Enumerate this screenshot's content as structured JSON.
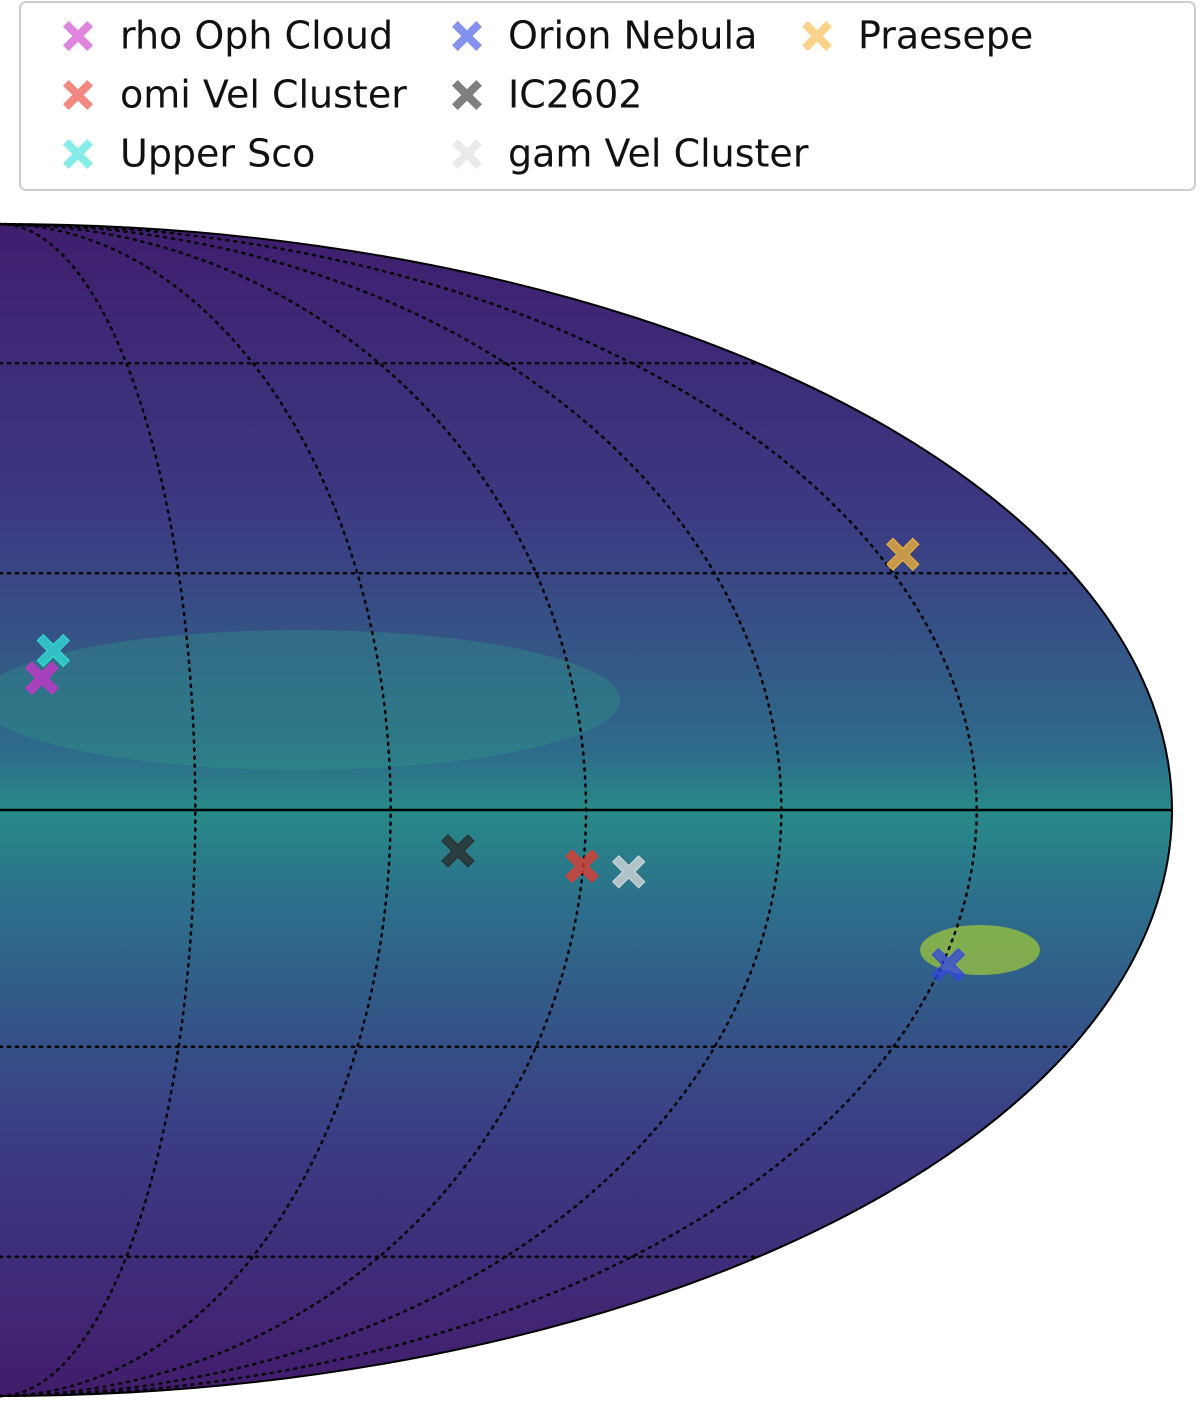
{
  "chart_data": {
    "type": "scatter",
    "projection": "mollweide",
    "xlim": [
      360,
      180
    ],
    "ylim": [
      -90,
      90
    ],
    "xticks": [
      330,
      300,
      270,
      240,
      210
    ],
    "yticks": [
      -60,
      -30,
      0,
      30,
      60
    ],
    "grid": true,
    "series": [
      {
        "name": "rho Oph Cloud",
        "color": "#cc33cc",
        "x": [
          353.4
        ],
        "values": [
          16.5
        ]
      },
      {
        "name": "omi Vel Cluster",
        "color": "#e83a2e",
        "x": [
          270.2
        ],
        "values": [
          -7.0
        ]
      },
      {
        "name": "Upper Sco",
        "color": "#33e0d8",
        "x": [
          351.5
        ],
        "values": [
          20.0
        ]
      },
      {
        "name": "Orion Nebula",
        "color": "#3347e0",
        "x": [
          209.0
        ],
        "values": [
          -19.4
        ]
      },
      {
        "name": "IC2602",
        "color": "#2a2a2a",
        "x": [
          289.5
        ],
        "values": [
          -5.1
        ]
      },
      {
        "name": "gam Vel Cluster",
        "color": "#dcdcdc",
        "x": [
          262.9
        ],
        "values": [
          -7.7
        ]
      },
      {
        "name": "Praesepe",
        "color": "#f5b53a",
        "x": [
          205.9
        ],
        "values": [
          32.5
        ]
      }
    ]
  }
}
